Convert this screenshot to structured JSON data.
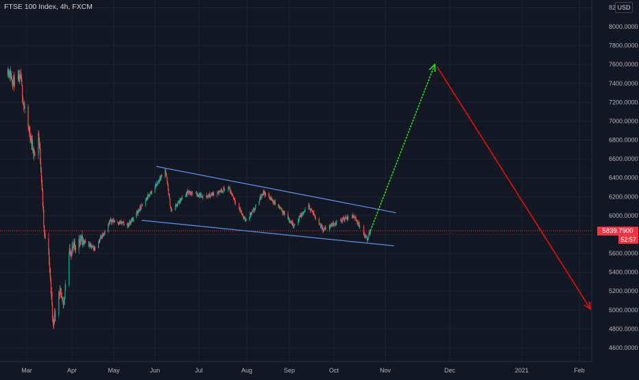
{
  "header": {
    "symbol": "FTSE 100 Index, 4h, FXCM",
    "currency": "USD"
  },
  "price_axis": {
    "labels": [
      "8000.0000",
      "7800.0000",
      "7600.0000",
      "7400.0000",
      "7200.0000",
      "7000.0000",
      "6800.0000",
      "6600.0000",
      "6400.0000",
      "6200.0000",
      "6000.0000",
      "5600.0000",
      "5400.0000",
      "5200.0000",
      "5000.0000",
      "4800.0000",
      "4600.0000"
    ],
    "partial_top_label": "82",
    "current_price": "5839.7900",
    "countdown": "52:57"
  },
  "time_axis": {
    "labels": [
      "Mar",
      "Apr",
      "May",
      "Jun",
      "Jul",
      "Aug",
      "Sep",
      "Oct",
      "Nov",
      "Dec",
      "2021",
      "Feb"
    ]
  },
  "colors": {
    "background": "#131722",
    "up_candle": "#26a69a",
    "down_candle": "#ef5350",
    "channel_line": "#5b8de8",
    "projection_up": "#22dd22",
    "projection_down": "#dd1111",
    "price_label": "#f23645"
  },
  "chart_data": {
    "type": "candlestick",
    "timeframe": "4h",
    "y_range": [
      4500,
      8250
    ],
    "x_range": [
      "2020-02-17",
      "2021-02-15"
    ],
    "approx_close_path": [
      {
        "date": "2020-02-17",
        "close": 7550
      },
      {
        "date": "2020-02-21",
        "close": 7420
      },
      {
        "date": "2020-02-26",
        "close": 7450
      },
      {
        "date": "2020-02-28",
        "close": 7150
      },
      {
        "date": "2020-03-04",
        "close": 6800
      },
      {
        "date": "2020-03-07",
        "close": 6600
      },
      {
        "date": "2020-03-09",
        "close": 6900
      },
      {
        "date": "2020-03-11",
        "close": 6450
      },
      {
        "date": "2020-03-13",
        "close": 5800
      },
      {
        "date": "2020-03-16",
        "close": 5600
      },
      {
        "date": "2020-03-18",
        "close": 5150
      },
      {
        "date": "2020-03-19",
        "close": 4850
      },
      {
        "date": "2020-03-23",
        "close": 5200
      },
      {
        "date": "2020-03-26",
        "close": 5050
      },
      {
        "date": "2020-03-30",
        "close": 5600
      },
      {
        "date": "2020-04-07",
        "close": 5750
      },
      {
        "date": "2020-04-17",
        "close": 5650
      },
      {
        "date": "2020-04-29",
        "close": 5950
      },
      {
        "date": "2020-05-12",
        "close": 5900
      },
      {
        "date": "2020-05-22",
        "close": 6100
      },
      {
        "date": "2020-06-03",
        "close": 6350
      },
      {
        "date": "2020-06-08",
        "close": 6500
      },
      {
        "date": "2020-06-12",
        "close": 6050
      },
      {
        "date": "2020-06-24",
        "close": 6250
      },
      {
        "date": "2020-07-06",
        "close": 6200
      },
      {
        "date": "2020-07-20",
        "close": 6300
      },
      {
        "date": "2020-07-31",
        "close": 5950
      },
      {
        "date": "2020-08-06",
        "close": 6050
      },
      {
        "date": "2020-08-13",
        "close": 6250
      },
      {
        "date": "2020-08-24",
        "close": 6100
      },
      {
        "date": "2020-09-04",
        "close": 5900
      },
      {
        "date": "2020-09-14",
        "close": 6100
      },
      {
        "date": "2020-09-24",
        "close": 5850
      },
      {
        "date": "2020-10-05",
        "close": 5950
      },
      {
        "date": "2020-10-13",
        "close": 6000
      },
      {
        "date": "2020-10-21",
        "close": 5750
      },
      {
        "date": "2020-10-23",
        "close": 5840
      }
    ],
    "drawings": [
      {
        "type": "trendline",
        "name": "upper-channel",
        "from": {
          "date": "2020-06-02",
          "price": 6520
        },
        "to": {
          "date": "2020-11-06",
          "price": 6030
        }
      },
      {
        "type": "trendline",
        "name": "lower-channel",
        "from": {
          "date": "2020-05-22",
          "price": 5950
        },
        "to": {
          "date": "2020-11-05",
          "price": 5680
        }
      },
      {
        "type": "arrow",
        "name": "projection-up",
        "from": {
          "date": "2020-10-23",
          "price": 5840
        },
        "to": {
          "date": "2020-11-24",
          "price": 7600
        }
      },
      {
        "type": "arrow",
        "name": "projection-down",
        "from": {
          "date": "2020-11-25",
          "price": 7580
        },
        "to": {
          "date": "2021-02-07",
          "price": 5010
        }
      }
    ]
  }
}
